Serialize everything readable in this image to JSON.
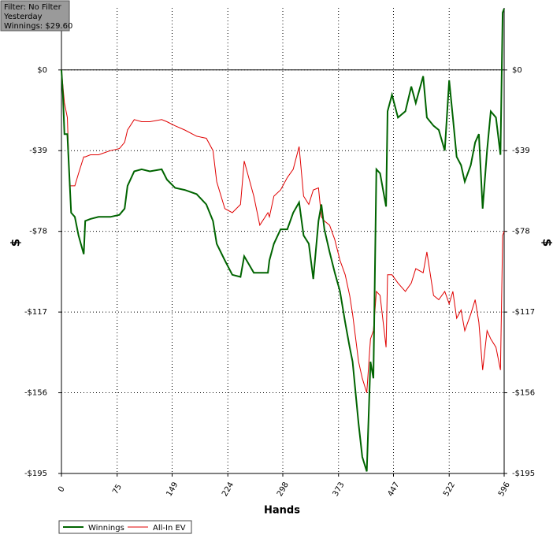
{
  "chart_data": {
    "type": "line",
    "info_box": [
      "Filter: No Filter",
      "Yesterday",
      "Winnings: $29.60"
    ],
    "x_label": "Hands",
    "y_label": "$",
    "xlim": [
      0,
      596
    ],
    "xticks": [
      0,
      75,
      149,
      224,
      298,
      373,
      447,
      522,
      596
    ],
    "ylim": [
      -195,
      30
    ],
    "yticks": [
      {
        "value": 0,
        "label": "$0"
      },
      {
        "value": -39,
        "label": "-$39"
      },
      {
        "value": -78,
        "label": "-$78"
      },
      {
        "value": -117,
        "label": "-$117"
      },
      {
        "value": -156,
        "label": "-$156"
      },
      {
        "value": -195,
        "label": "-$195"
      }
    ],
    "grid": true,
    "zero_line": true,
    "legend": "bottom-left",
    "x": [
      0,
      2,
      4,
      8,
      11,
      13,
      18,
      23,
      30,
      32,
      39,
      50,
      66,
      78,
      85,
      89,
      98,
      108,
      119,
      135,
      142,
      153,
      166,
      182,
      195,
      204,
      209,
      220,
      230,
      241,
      246,
      259,
      267,
      278,
      280,
      286,
      295,
      304,
      312,
      320,
      326,
      333,
      339,
      346,
      350,
      354,
      361,
      368,
      375,
      382,
      388,
      392,
      400,
      405,
      411,
      416,
      420,
      424,
      429,
      437,
      439,
      445,
      453,
      463,
      471,
      477,
      487,
      492,
      501,
      508,
      516,
      522,
      527,
      532,
      538,
      543,
      551,
      557,
      562,
      567,
      573,
      578,
      585,
      591,
      594,
      596
    ],
    "series": [
      {
        "name": "Winnings",
        "color": "#006400",
        "width": 2,
        "values": [
          0,
          -12,
          -31,
          -31,
          -54,
          -69,
          -71,
          -80,
          -89,
          -73,
          -72,
          -71,
          -71,
          -70,
          -67,
          -56,
          -49,
          -48,
          -49,
          -48,
          -53,
          -57,
          -58,
          -60,
          -65,
          -73,
          -84,
          -92,
          -99,
          -100,
          -90,
          -98,
          -98,
          -98,
          -92,
          -84,
          -77,
          -77,
          -69,
          -64,
          -80,
          -84,
          -101,
          -73,
          -65,
          -77,
          -88,
          -98,
          -107,
          -122,
          -134,
          -141,
          -171,
          -187,
          -194,
          -141,
          -149,
          -48,
          -50,
          -66,
          -20,
          -12,
          -23,
          -20,
          -8,
          -16,
          -3,
          -23,
          -27,
          -29,
          -39,
          -5,
          -23,
          -42,
          -46,
          -54,
          -46,
          -35,
          -31,
          -67,
          -39,
          -20,
          -23,
          -41,
          27.7,
          29.6
        ]
      },
      {
        "name": "All-In EV",
        "color": "#e00000",
        "width": 1,
        "values": [
          0,
          -8,
          -16,
          -23,
          -56,
          -56,
          -56,
          -50,
          -42,
          -42,
          -41,
          -41,
          -39,
          -38,
          -35,
          -29,
          -24,
          -25,
          -25,
          -24,
          -25,
          -27,
          -29,
          -32,
          -33,
          -39,
          -54,
          -67,
          -69,
          -65,
          -44,
          -61,
          -75,
          -69,
          -71,
          -61,
          -58,
          -52,
          -48,
          -37,
          -61,
          -65,
          -58,
          -57,
          -71,
          -73,
          -75,
          -82,
          -92,
          -99,
          -109,
          -118,
          -141,
          -149,
          -156,
          -130,
          -126,
          -107,
          -109,
          -134,
          -99,
          -99,
          -103,
          -107,
          -103,
          -96,
          -98,
          -88,
          -109,
          -111,
          -107,
          -113,
          -107,
          -120,
          -116,
          -126,
          -118,
          -111,
          -122,
          -145,
          -126,
          -130,
          -134,
          -145,
          -80,
          -78
        ]
      }
    ]
  }
}
